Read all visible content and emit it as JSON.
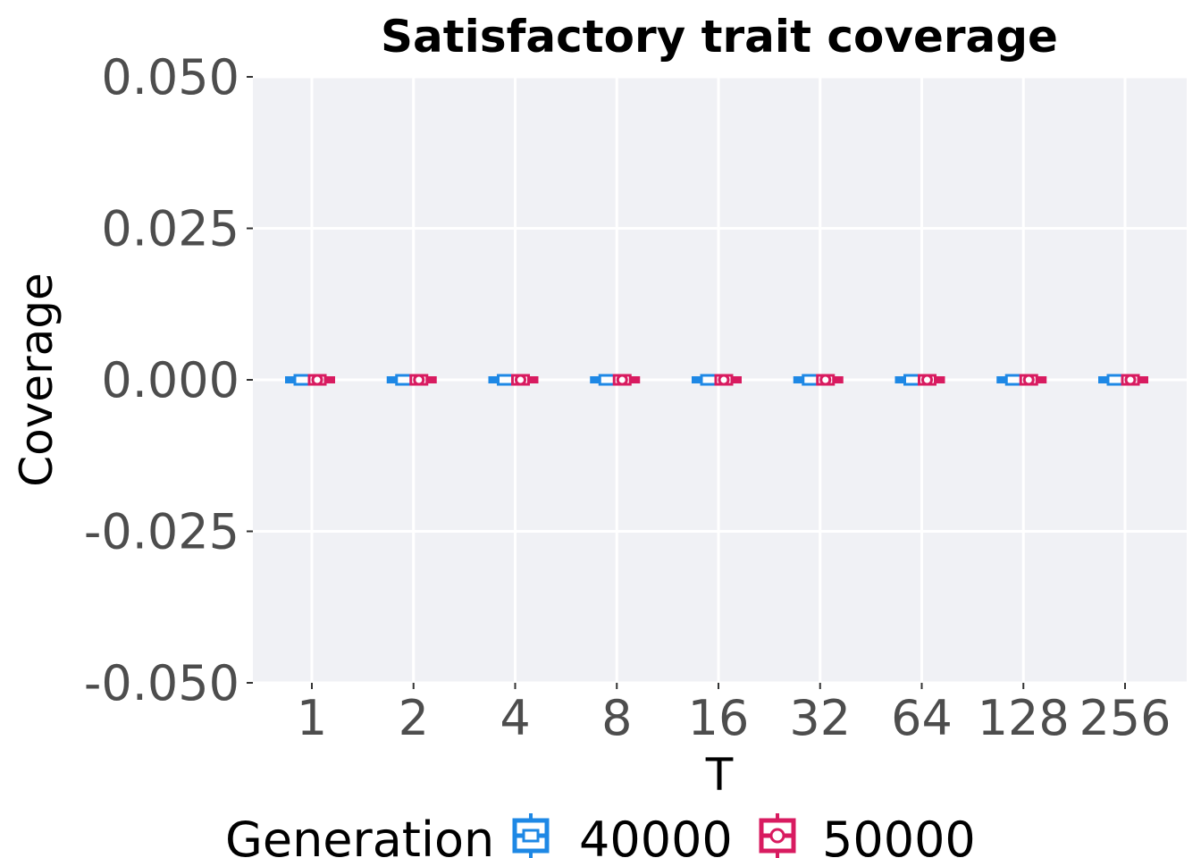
{
  "chart_data": {
    "type": "box",
    "title": "Satisfactory trait coverage",
    "xlabel": "T",
    "ylabel": "Coverage",
    "categories": [
      "1",
      "2",
      "4",
      "8",
      "16",
      "32",
      "64",
      "128",
      "256"
    ],
    "ylim": [
      -0.05,
      0.05
    ],
    "y_ticks": [
      -0.05,
      -0.025,
      0,
      0.025,
      0.05
    ],
    "y_tick_labels": [
      "-0.050",
      "-0.025",
      "0.000",
      "0.025",
      "0.050"
    ],
    "grid": true,
    "legend": {
      "title": "Generation",
      "position": "bottom"
    },
    "series": [
      {
        "name": "40000",
        "color": "#1e88e5",
        "values": [
          0,
          0,
          0,
          0,
          0,
          0,
          0,
          0,
          0
        ]
      },
      {
        "name": "50000",
        "color": "#d81b60",
        "values": [
          0,
          0,
          0,
          0,
          0,
          0,
          0,
          0,
          0
        ]
      }
    ]
  }
}
